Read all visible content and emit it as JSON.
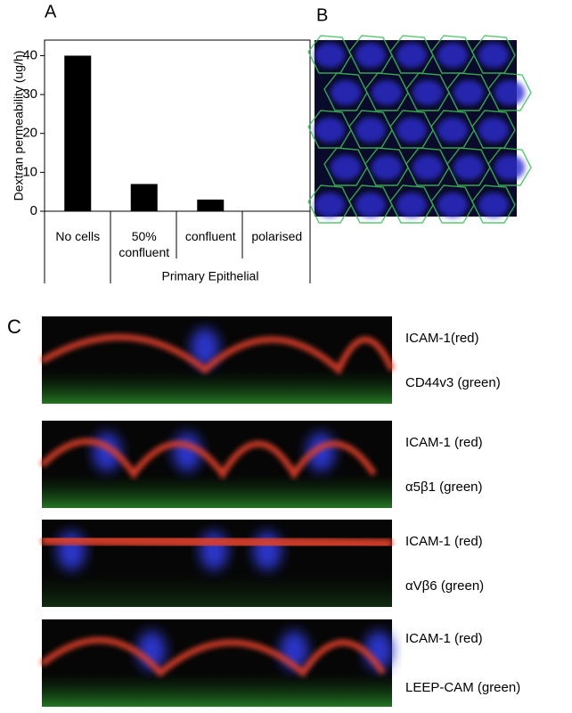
{
  "panels": {
    "a": "A",
    "b": "B",
    "c": "C"
  },
  "chart_data": {
    "type": "bar",
    "y_label": "Dextran permeability (ug/h)",
    "categories": [
      "No cells",
      "50% confluent",
      "confluent",
      "polarised"
    ],
    "values": [
      40,
      7,
      3,
      0
    ],
    "color": "#000000",
    "ylim": [
      0,
      44
    ],
    "yticks": [
      0,
      10,
      20,
      30,
      40
    ],
    "group_label": "Primary Epithelial"
  },
  "images": [
    {
      "label_1": "ICAM-1(red)",
      "label_2": "CD44v3 (green)"
    },
    {
      "label_1": "ICAM-1 (red)",
      "label_2": "α5β1 (green)"
    },
    {
      "label_1": "ICAM-1 (red)",
      "label_2": "αVβ6 (green)"
    },
    {
      "label_1": "ICAM-1 (red)",
      "label_2": "LEEP-CAM (green)"
    }
  ]
}
